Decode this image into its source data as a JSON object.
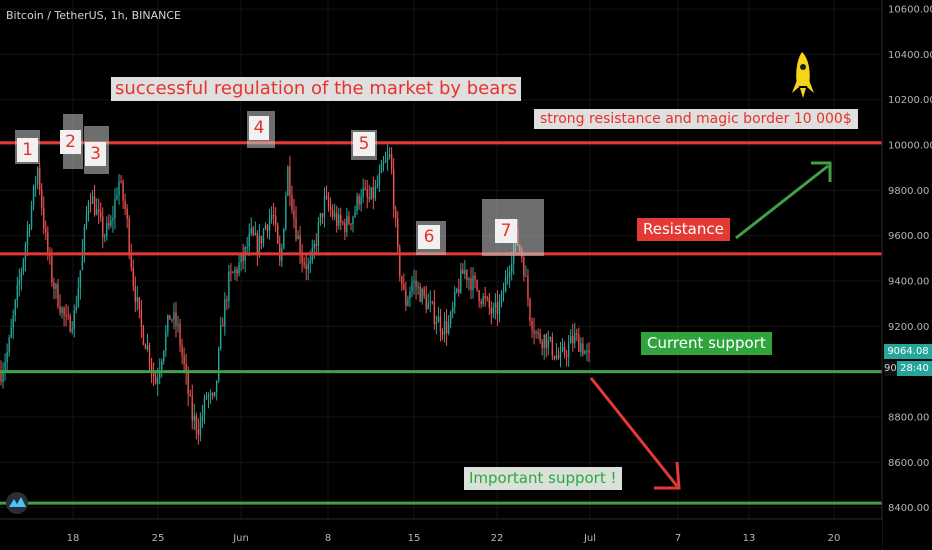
{
  "header": {
    "pair": "Bitcoin / TetherUS, 1h, BINANCE"
  },
  "price_axis": {
    "labels": [
      "10600.00",
      "10400.00",
      "10200.00",
      "10000.00",
      "9800.00",
      "9600.00",
      "9400.00",
      "9200.00",
      "9000.00",
      "8800.00",
      "8600.00",
      "8400.00"
    ],
    "current_price": "9064.08",
    "countdown": "28:40",
    "clipped_label": "90"
  },
  "time_axis": {
    "labels": [
      "18",
      "25",
      "Jun",
      "8",
      "15",
      "22",
      "Jul",
      "7",
      "13",
      "20"
    ]
  },
  "annotations": {
    "bears_note": "successful regulation of the market by bears",
    "resistance_note": "strong resistance and magic border 10 000$",
    "resistance_label": "Resistance",
    "current_support_label": "Current support",
    "important_support_label": "Important support !",
    "markers": [
      "1",
      "2",
      "3",
      "4",
      "5",
      "6",
      "7"
    ]
  },
  "colors": {
    "background": "#000000",
    "up": "#26a69a",
    "down": "#ef5350",
    "resistance_line": "#e53935",
    "support_line": "#43a047",
    "label_red": "#e8322b",
    "label_green": "#2bab3b"
  },
  "icons": {
    "rocket": "rocket-icon",
    "logo": "tradingview-logo-icon"
  },
  "chart_data": {
    "type": "candlestick",
    "title": "Bitcoin / TetherUS, 1h, BINANCE",
    "xlabel": "",
    "ylabel": "",
    "ylim": [
      8350,
      10640
    ],
    "x_ticks": [
      "18",
      "25",
      "Jun",
      "8",
      "15",
      "22",
      "Jul",
      "7",
      "13",
      "20"
    ],
    "y_ticks": [
      10600,
      10400,
      10200,
      10000,
      9800,
      9600,
      9400,
      9200,
      9000,
      8800,
      8600,
      8400
    ],
    "current_price": 9064.08,
    "horizontal_levels": [
      {
        "name": "strong resistance",
        "value": 10010,
        "color": "red"
      },
      {
        "name": "resistance",
        "value": 9520,
        "color": "red"
      },
      {
        "name": "current support",
        "value": 9000,
        "color": "green"
      },
      {
        "name": "important support",
        "value": 8420,
        "color": "green"
      }
    ],
    "price_path": [
      9000,
      9100,
      9300,
      9500,
      9700,
      9900,
      9600,
      9400,
      9300,
      9200,
      9250,
      9500,
      9800,
      9700,
      9600,
      9650,
      9850,
      9700,
      9400,
      9200,
      9100,
      8950,
      9100,
      9250,
      9200,
      9000,
      8800,
      8750,
      8900,
      8850,
      9200,
      9400,
      9450,
      9500,
      9600,
      9550,
      9650,
      9700,
      9450,
      9900,
      9650,
      9500,
      9450,
      9600,
      9750,
      9700,
      9650,
      9650,
      9700,
      9800,
      9750,
      9800,
      9900,
      9950,
      9500,
      9300,
      9400,
      9350,
      9300,
      9250,
      9200,
      9200,
      9350,
      9450,
      9400,
      9350,
      9300,
      9250,
      9300,
      9450,
      9600,
      9500,
      9250,
      9150,
      9150,
      9100,
      9050,
      9100,
      9150,
      9120,
      9050
    ],
    "trend_arrows": [
      {
        "direction": "up",
        "color": "green"
      },
      {
        "direction": "down",
        "color": "red"
      }
    ]
  }
}
